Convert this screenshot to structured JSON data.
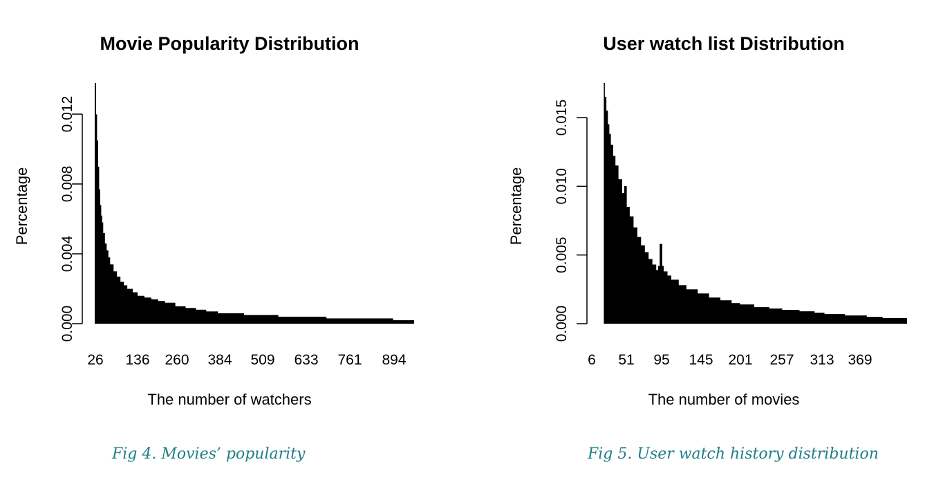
{
  "figures": [
    {
      "caption": "Fig 4. Movies’ popularity"
    },
    {
      "caption": "Fig 5. User watch history distribution"
    }
  ],
  "chart_data": [
    {
      "type": "bar",
      "title": "Movie Popularity Distribution",
      "xlabel": "The number of watchers",
      "ylabel": "Percentage",
      "y_ticks": [
        "0.000",
        "0.004",
        "0.008",
        "0.012"
      ],
      "x_ticks": [
        "26",
        "136",
        "260",
        "384",
        "509",
        "633",
        "761",
        "894"
      ],
      "ylim": [
        0,
        0.0138
      ],
      "xlim": [
        26,
        950
      ],
      "bar_color": "#000000",
      "series": [
        {
          "x": [
            26,
            29,
            32,
            35,
            38,
            41,
            44,
            47,
            50,
            55,
            60,
            65,
            70,
            80,
            90,
            100,
            110,
            120,
            136,
            150,
            170,
            190,
            210,
            230,
            260,
            290,
            320,
            350,
            384,
            420,
            460,
            509,
            560,
            633,
            700,
            761,
            830,
            894,
            950
          ],
          "values": [
            0.0138,
            0.012,
            0.0105,
            0.009,
            0.0077,
            0.0068,
            0.0062,
            0.0058,
            0.0052,
            0.0046,
            0.0042,
            0.0038,
            0.0034,
            0.003,
            0.0027,
            0.0024,
            0.0022,
            0.002,
            0.0018,
            0.0016,
            0.0015,
            0.0014,
            0.0013,
            0.0012,
            0.001,
            0.0009,
            0.0008,
            0.0007,
            0.0006,
            0.0006,
            0.0005,
            0.0005,
            0.0004,
            0.0004,
            0.0003,
            0.0003,
            0.0003,
            0.0002,
            0.0002
          ]
        }
      ]
    },
    {
      "type": "bar",
      "title": "User watch list Distribution",
      "xlabel": "The number of movies",
      "ylabel": "Percentage",
      "y_ticks": [
        "0.000",
        "0.005",
        "0.010",
        "0.015"
      ],
      "x_ticks": [
        "6",
        "51",
        "95",
        "145",
        "201",
        "257",
        "313",
        "369"
      ],
      "ylim": [
        0,
        0.0175
      ],
      "xlim": [
        6,
        420
      ],
      "bar_color": "#000000",
      "series": [
        {
          "x": [
            6,
            20,
            21,
            22,
            24,
            26,
            28,
            30,
            33,
            36,
            40,
            45,
            48,
            51,
            55,
            60,
            65,
            70,
            75,
            80,
            85,
            90,
            93,
            95,
            98,
            100,
            105,
            110,
            120,
            130,
            145,
            160,
            175,
            190,
            201,
            220,
            240,
            257,
            280,
            300,
            313,
            340,
            369,
            390,
            420
          ],
          "values": [
            0.0,
            0.0,
            0.0175,
            0.0165,
            0.0155,
            0.0145,
            0.0138,
            0.013,
            0.0122,
            0.0115,
            0.0105,
            0.0095,
            0.01,
            0.0085,
            0.0078,
            0.007,
            0.0063,
            0.0057,
            0.0052,
            0.0047,
            0.0043,
            0.0039,
            0.0042,
            0.0058,
            0.0042,
            0.0038,
            0.0035,
            0.0032,
            0.0028,
            0.0025,
            0.0022,
            0.0019,
            0.0017,
            0.0015,
            0.0014,
            0.0012,
            0.0011,
            0.001,
            0.0009,
            0.0008,
            0.0007,
            0.0006,
            0.0005,
            0.0004,
            0.0004
          ]
        }
      ]
    }
  ]
}
